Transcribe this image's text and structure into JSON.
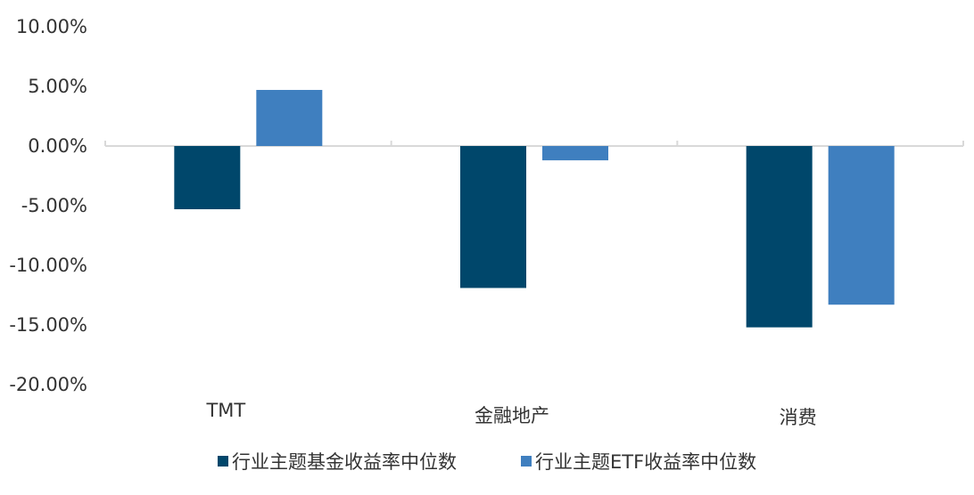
{
  "chart_data": {
    "type": "bar",
    "categories": [
      "TMT",
      "金融地产",
      "消费"
    ],
    "series": [
      {
        "name": "行业主题基金收益率中位数",
        "values": [
          -5.3,
          -11.9,
          -15.2
        ],
        "color": "#00476B"
      },
      {
        "name": "行业主题ETF收益率中位数",
        "values": [
          4.7,
          -1.2,
          -13.3
        ],
        "color": "#3F7FBF"
      }
    ],
    "y_ticks": [
      "10.00%",
      "5.00%",
      "0.00%",
      "-5.00%",
      "-10.00%",
      "-15.00%",
      "-20.00%"
    ],
    "ylim": [
      -20,
      10
    ],
    "grid": false,
    "legend_position": "bottom",
    "axis_color": "#D9D9D9"
  }
}
